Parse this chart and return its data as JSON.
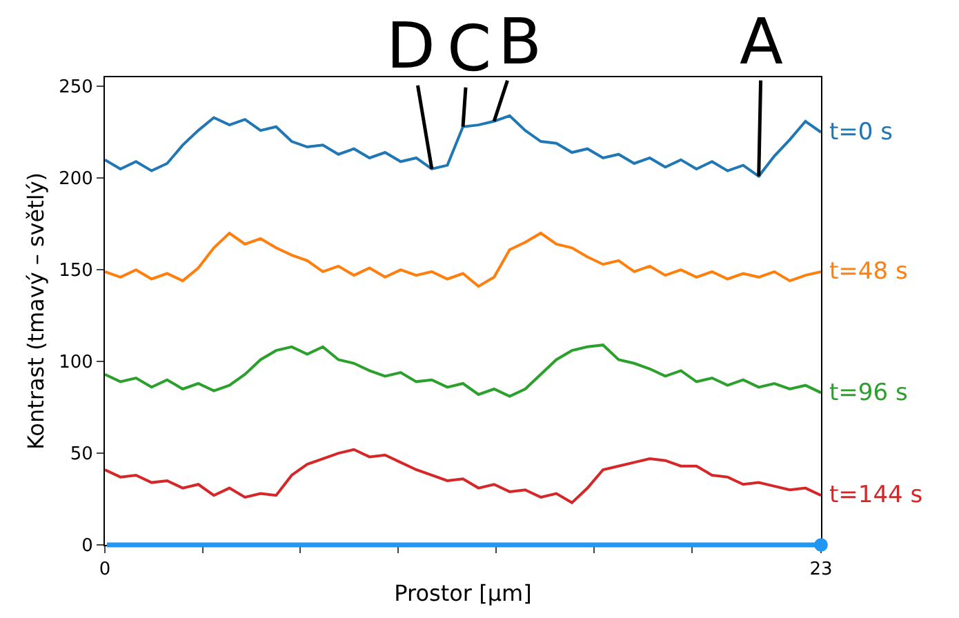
{
  "chart_data": {
    "type": "line",
    "xlabel": "Prostor [µm]",
    "ylabel": "Kontrast (tmavý – světlý)",
    "x": [
      0,
      0.5,
      1,
      1.5,
      2,
      2.5,
      3,
      3.5,
      4,
      4.5,
      5,
      5.5,
      6,
      6.5,
      7,
      7.5,
      8,
      8.5,
      9,
      9.5,
      10,
      10.5,
      11,
      11.5,
      12,
      12.5,
      13,
      13.5,
      14,
      14.5,
      15,
      15.5,
      16,
      16.5,
      17,
      17.5,
      18,
      18.5,
      19,
      19.5,
      20,
      20.5,
      21,
      21.5,
      22,
      22.5,
      23
    ],
    "series": [
      {
        "name": "t=0 s",
        "color": "#1f77b4",
        "values": [
          210,
          205,
          209,
          204,
          208,
          218,
          226,
          233,
          229,
          232,
          226,
          228,
          220,
          217,
          218,
          213,
          216,
          211,
          214,
          209,
          211,
          205,
          207,
          228,
          229,
          231,
          234,
          226,
          220,
          219,
          214,
          216,
          211,
          213,
          208,
          211,
          206,
          210,
          205,
          209,
          204,
          207,
          201,
          212,
          221,
          231,
          225
        ]
      },
      {
        "name": "t=48 s",
        "color": "#ff7f0e",
        "values": [
          149,
          146,
          150,
          145,
          148,
          144,
          151,
          162,
          170,
          164,
          167,
          162,
          158,
          155,
          149,
          152,
          147,
          151,
          146,
          150,
          147,
          149,
          145,
          148,
          141,
          146,
          161,
          165,
          170,
          164,
          162,
          157,
          153,
          155,
          149,
          152,
          147,
          150,
          146,
          149,
          145,
          148,
          146,
          149,
          144,
          147,
          149
        ]
      },
      {
        "name": "t=96 s",
        "color": "#2ca02c",
        "values": [
          93,
          89,
          91,
          86,
          90,
          85,
          88,
          84,
          87,
          93,
          101,
          106,
          108,
          104,
          108,
          101,
          99,
          95,
          92,
          94,
          89,
          90,
          86,
          88,
          82,
          85,
          81,
          85,
          93,
          101,
          106,
          108,
          109,
          101,
          99,
          96,
          92,
          95,
          89,
          91,
          87,
          90,
          86,
          88,
          85,
          87,
          83
        ]
      },
      {
        "name": "t=144 s",
        "color": "#d62728",
        "values": [
          41,
          37,
          38,
          34,
          35,
          31,
          33,
          27,
          31,
          26,
          28,
          27,
          38,
          44,
          47,
          50,
          52,
          48,
          49,
          45,
          41,
          38,
          35,
          36,
          31,
          33,
          29,
          30,
          26,
          28,
          23,
          31,
          41,
          43,
          45,
          47,
          46,
          43,
          43,
          38,
          37,
          33,
          34,
          32,
          30,
          31,
          27
        ]
      }
    ],
    "annotations": [
      {
        "text": "D",
        "x": 10.5,
        "y": 205
      },
      {
        "text": "C",
        "x": 11.5,
        "y": 228
      },
      {
        "text": "B",
        "x": 12.5,
        "y": 231
      },
      {
        "text": "A",
        "x": 21,
        "y": 201
      }
    ],
    "ref_lines": [
      {
        "axis": "y",
        "value": 0,
        "color": "#2196f3"
      }
    ],
    "xlim": [
      0,
      23
    ],
    "ylim": [
      0,
      255
    ],
    "xticks": [
      0,
      {
        "value": 3.14,
        "label": null
      },
      {
        "value": 6.28,
        "label": null
      },
      {
        "value": 9.42,
        "label": null
      },
      {
        "value": 12.57,
        "label": null
      },
      {
        "value": 15.71,
        "label": null
      },
      {
        "value": 18.85,
        "label": null
      },
      23
    ],
    "yticks": [
      0,
      50,
      100,
      150,
      200,
      250
    ],
    "legend": false,
    "marker": "none",
    "line_style": "solid"
  }
}
